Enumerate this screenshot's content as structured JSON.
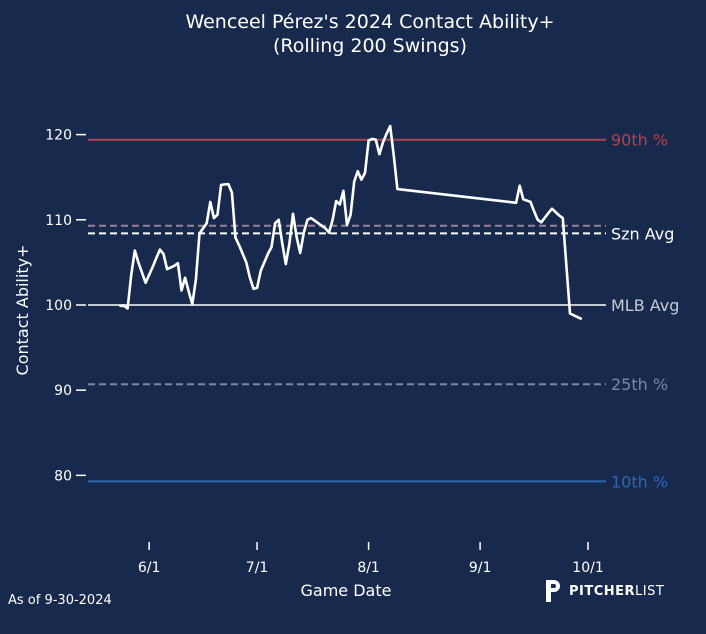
{
  "chart_data": {
    "type": "line",
    "title": "Wenceel Pérez's 2024 Contact Ability+",
    "subtitle": "(Rolling 200 Swings)",
    "xlabel": "Game Date",
    "ylabel": "Contact Ability+",
    "xlim": [
      "2024-05-15",
      "2024-10-06"
    ],
    "ylim": [
      73,
      125
    ],
    "x_ticks": [
      {
        "date": "2024-06-01",
        "label": "6/1"
      },
      {
        "date": "2024-07-01",
        "label": "7/1"
      },
      {
        "date": "2024-08-01",
        "label": "8/1"
      },
      {
        "date": "2024-09-01",
        "label": "9/1"
      },
      {
        "date": "2024-10-01",
        "label": "10/1"
      }
    ],
    "y_ticks": [
      80,
      90,
      100,
      110,
      120
    ],
    "reference_lines": [
      {
        "label": "90th %",
        "value": 119.4,
        "color": "#b5434f",
        "style": "solid"
      },
      {
        "label": "",
        "value": 109.3,
        "color": "#9a7f99",
        "style": "dashed"
      },
      {
        "label": "Szn Avg",
        "value": 108.4,
        "color": "#ffffff",
        "style": "dashed"
      },
      {
        "label": "MLB Avg",
        "value": 100.0,
        "color": "#c5c9d1",
        "style": "solid"
      },
      {
        "label": "25th %",
        "value": 90.7,
        "color": "#7b88a6",
        "style": "dashed"
      },
      {
        "label": "10th %",
        "value": 79.3,
        "color": "#2f66b3",
        "style": "solid"
      }
    ],
    "series": [
      {
        "color": "#ffffff",
        "points": [
          [
            "2024-05-24",
            99.9
          ],
          [
            "2024-05-25",
            99.9
          ],
          [
            "2024-05-26",
            99.6
          ],
          [
            "2024-05-27",
            103.5
          ],
          [
            "2024-05-28",
            106.4
          ],
          [
            "2024-05-29",
            105.0
          ],
          [
            "2024-05-31",
            102.6
          ],
          [
            "2024-06-02",
            104.5
          ],
          [
            "2024-06-03",
            105.5
          ],
          [
            "2024-06-04",
            106.5
          ],
          [
            "2024-06-05",
            106.0
          ],
          [
            "2024-06-06",
            104.2
          ],
          [
            "2024-06-08",
            104.6
          ],
          [
            "2024-06-09",
            104.9
          ],
          [
            "2024-06-10",
            101.7
          ],
          [
            "2024-06-11",
            103.2
          ],
          [
            "2024-06-12",
            101.6
          ],
          [
            "2024-06-13",
            100.1
          ],
          [
            "2024-06-14",
            103.0
          ],
          [
            "2024-06-15",
            108.4
          ],
          [
            "2024-06-17",
            109.6
          ],
          [
            "2024-06-18",
            112.1
          ],
          [
            "2024-06-19",
            110.2
          ],
          [
            "2024-06-20",
            110.6
          ],
          [
            "2024-06-21",
            114.1
          ],
          [
            "2024-06-23",
            114.2
          ],
          [
            "2024-06-24",
            113.2
          ],
          [
            "2024-06-25",
            107.9
          ],
          [
            "2024-06-26",
            107.0
          ],
          [
            "2024-06-28",
            105.0
          ],
          [
            "2024-06-29",
            103.2
          ],
          [
            "2024-06-30",
            101.9
          ],
          [
            "2024-07-01",
            102.0
          ],
          [
            "2024-07-02",
            104.0
          ],
          [
            "2024-07-04",
            106.0
          ],
          [
            "2024-07-05",
            106.8
          ],
          [
            "2024-07-06",
            109.6
          ],
          [
            "2024-07-07",
            110.0
          ],
          [
            "2024-07-08",
            107.2
          ],
          [
            "2024-07-09",
            104.8
          ],
          [
            "2024-07-10",
            107.2
          ],
          [
            "2024-07-11",
            110.7
          ],
          [
            "2024-07-12",
            108.0
          ],
          [
            "2024-07-13",
            106.1
          ],
          [
            "2024-07-14",
            108.5
          ],
          [
            "2024-07-15",
            110.0
          ],
          [
            "2024-07-16",
            110.2
          ],
          [
            "2024-07-17",
            109.9
          ],
          [
            "2024-07-19",
            109.3
          ],
          [
            "2024-07-20",
            109.0
          ],
          [
            "2024-07-21",
            108.5
          ],
          [
            "2024-07-22",
            110.0
          ],
          [
            "2024-07-23",
            112.2
          ],
          [
            "2024-07-24",
            111.8
          ],
          [
            "2024-07-25",
            113.4
          ],
          [
            "2024-07-26",
            109.4
          ],
          [
            "2024-07-27",
            110.6
          ],
          [
            "2024-07-28",
            114.5
          ],
          [
            "2024-07-29",
            115.7
          ],
          [
            "2024-07-30",
            114.7
          ],
          [
            "2024-07-31",
            115.5
          ],
          [
            "2024-08-01",
            119.3
          ],
          [
            "2024-08-02",
            119.5
          ],
          [
            "2024-08-03",
            119.4
          ],
          [
            "2024-08-04",
            117.7
          ],
          [
            "2024-08-05",
            119.1
          ],
          [
            "2024-08-06",
            120.1
          ],
          [
            "2024-08-07",
            121.0
          ],
          [
            "2024-08-08",
            117.5
          ],
          [
            "2024-08-09",
            113.6
          ],
          [
            "2024-09-11",
            112.0
          ],
          [
            "2024-09-12",
            114.0
          ],
          [
            "2024-09-13",
            112.4
          ],
          [
            "2024-09-15",
            112.1
          ],
          [
            "2024-09-16",
            111.0
          ],
          [
            "2024-09-17",
            110.0
          ],
          [
            "2024-09-18",
            109.7
          ],
          [
            "2024-09-20",
            110.8
          ],
          [
            "2024-09-21",
            111.3
          ],
          [
            "2024-09-23",
            110.5
          ],
          [
            "2024-09-24",
            110.2
          ],
          [
            "2024-09-26",
            99.0
          ],
          [
            "2024-09-28",
            98.6
          ],
          [
            "2024-09-29",
            98.4
          ]
        ]
      }
    ],
    "grid": false,
    "legend": "none"
  },
  "footer": {
    "as_of": "As of 9-30-2024",
    "brand_bold": "PITCHER",
    "brand_light": "LIST"
  },
  "colors": {
    "background": "#172a4d",
    "text": "#ffffff"
  }
}
